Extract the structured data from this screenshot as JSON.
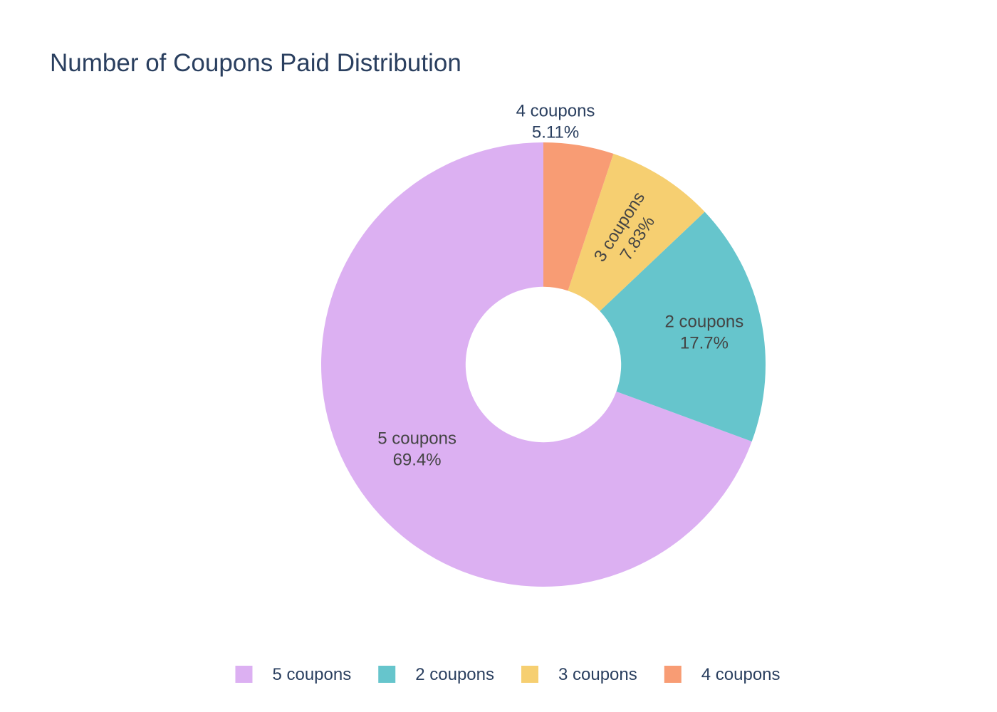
{
  "chart_data": {
    "type": "pie",
    "title": "Number of Coupons Paid Distribution",
    "hole": 0.35,
    "legend_position": "bottom",
    "slices": [
      {
        "label": "5 coupons",
        "percent_text": "69.4%",
        "value": 69.4,
        "color": "#dcb0f2"
      },
      {
        "label": "2 coupons",
        "percent_text": "17.7%",
        "value": 17.7,
        "color": "#66c5cc"
      },
      {
        "label": "3 coupons",
        "percent_text": "7.83%",
        "value": 7.83,
        "color": "#f6cf71"
      },
      {
        "label": "4 coupons",
        "percent_text": "5.11%",
        "value": 5.11,
        "color": "#f89c74"
      }
    ],
    "label_text_color": "#444444",
    "outside_label_color": "#2a3f5f"
  }
}
